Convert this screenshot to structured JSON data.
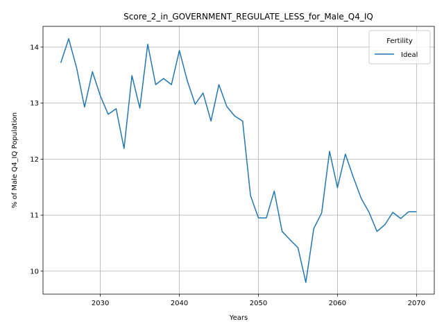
{
  "chart_data": {
    "type": "line",
    "title": "Score_2_in_GOVERNMENT_REGULATE_LESS_for_Male_Q4_IQ",
    "xlabel": "Years",
    "ylabel": "% of Male Q4_IQ Population",
    "xlim": [
      2022.75,
      2072.25
    ],
    "ylim": [
      9.59,
      14.37
    ],
    "x_ticks": [
      2030,
      2040,
      2050,
      2060,
      2070
    ],
    "x_tick_labels": [
      "2030",
      "2040",
      "2050",
      "2060",
      "2070"
    ],
    "y_ticks": [
      10,
      11,
      12,
      13,
      14
    ],
    "y_tick_labels": [
      "10",
      "11",
      "12",
      "13",
      "14"
    ],
    "grid": true,
    "legend": {
      "title": "Fertility",
      "position": "top-right",
      "entries": [
        "Ideal"
      ]
    },
    "series": [
      {
        "name": "Ideal",
        "color": "#1f77b4",
        "x": [
          2025,
          2026,
          2027,
          2028,
          2029,
          2030,
          2031,
          2032,
          2033,
          2034,
          2035,
          2036,
          2037,
          2038,
          2039,
          2040,
          2041,
          2042,
          2043,
          2044,
          2045,
          2046,
          2047,
          2048,
          2049,
          2050,
          2051,
          2052,
          2053,
          2054,
          2055,
          2056,
          2057,
          2058,
          2059,
          2060,
          2061,
          2062,
          2063,
          2064,
          2065,
          2066,
          2067,
          2068,
          2069,
          2070
        ],
        "y": [
          13.72,
          14.15,
          13.63,
          12.93,
          13.56,
          13.13,
          12.8,
          12.9,
          12.19,
          13.49,
          12.91,
          14.05,
          13.33,
          13.44,
          13.33,
          13.94,
          13.4,
          12.98,
          13.18,
          12.68,
          13.33,
          12.94,
          12.77,
          12.68,
          11.35,
          10.95,
          10.95,
          11.43,
          10.71,
          10.56,
          10.42,
          9.8,
          10.76,
          11.04,
          12.14,
          11.49,
          12.09,
          11.68,
          11.3,
          11.05,
          10.71,
          10.83,
          11.05,
          10.94,
          11.06,
          11.06
        ]
      }
    ]
  }
}
